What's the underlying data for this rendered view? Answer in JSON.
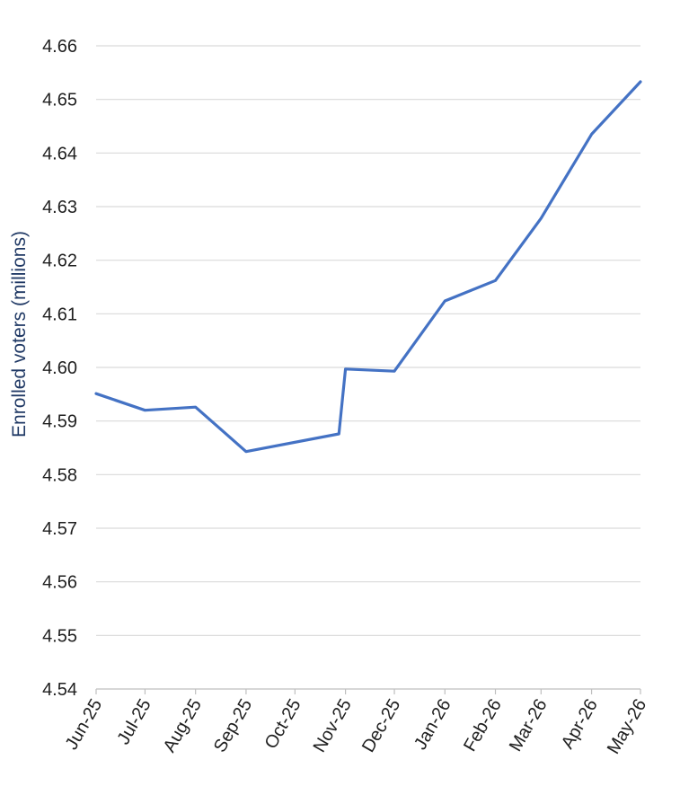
{
  "chart_data": {
    "type": "line",
    "title": "",
    "xlabel": "",
    "ylabel": "Enrolled voters (millions)",
    "ylim": [
      4.54,
      4.66
    ],
    "y_ticks": [
      "4.54",
      "4.55",
      "4.56",
      "4.57",
      "4.58",
      "4.59",
      "4.60",
      "4.61",
      "4.62",
      "4.63",
      "4.64",
      "4.65",
      "4.66"
    ],
    "x_ticks": [
      "Jun-25",
      "Jul-25",
      "Aug-25",
      "Sep-25",
      "Oct-25",
      "Nov-25",
      "Dec-25",
      "Jan-26",
      "Feb-26",
      "Mar-26",
      "Apr-26",
      "May-26"
    ],
    "grid": true,
    "legend": "none",
    "series": [
      {
        "color": "#4472c4",
        "points": [
          {
            "x": "2025-06-01",
            "y": 4.5951
          },
          {
            "x": "2025-07-01",
            "y": 4.592
          },
          {
            "x": "2025-08-01",
            "y": 4.5926
          },
          {
            "x": "2025-09-01",
            "y": 4.5843
          },
          {
            "x": "2025-10-28",
            "y": 4.5876
          },
          {
            "x": "2025-11-01",
            "y": 4.5997
          },
          {
            "x": "2025-12-01",
            "y": 4.5993
          },
          {
            "x": "2026-01-01",
            "y": 4.6124
          },
          {
            "x": "2026-02-01",
            "y": 4.6162
          },
          {
            "x": "2026-03-01",
            "y": 4.6278
          },
          {
            "x": "2026-04-01",
            "y": 4.6435
          },
          {
            "x": "2026-05-01",
            "y": 4.6533
          }
        ]
      }
    ]
  }
}
